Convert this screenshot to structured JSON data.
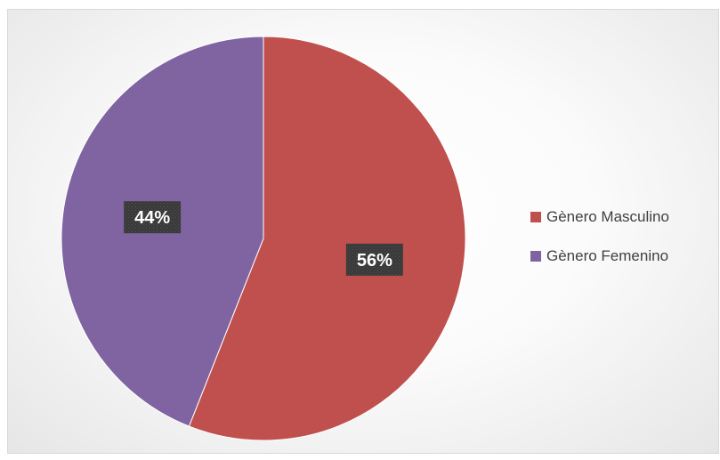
{
  "chart_data": {
    "type": "pie",
    "categories": [
      "Gènero Masculino",
      "Gènero Femenino"
    ],
    "values": [
      56,
      44
    ],
    "data_labels": [
      "56%",
      "44%"
    ],
    "colors": [
      "#c0504d",
      "#8064a2"
    ],
    "legend_position": "right",
    "start_angle": "top",
    "direction": "clockwise"
  }
}
